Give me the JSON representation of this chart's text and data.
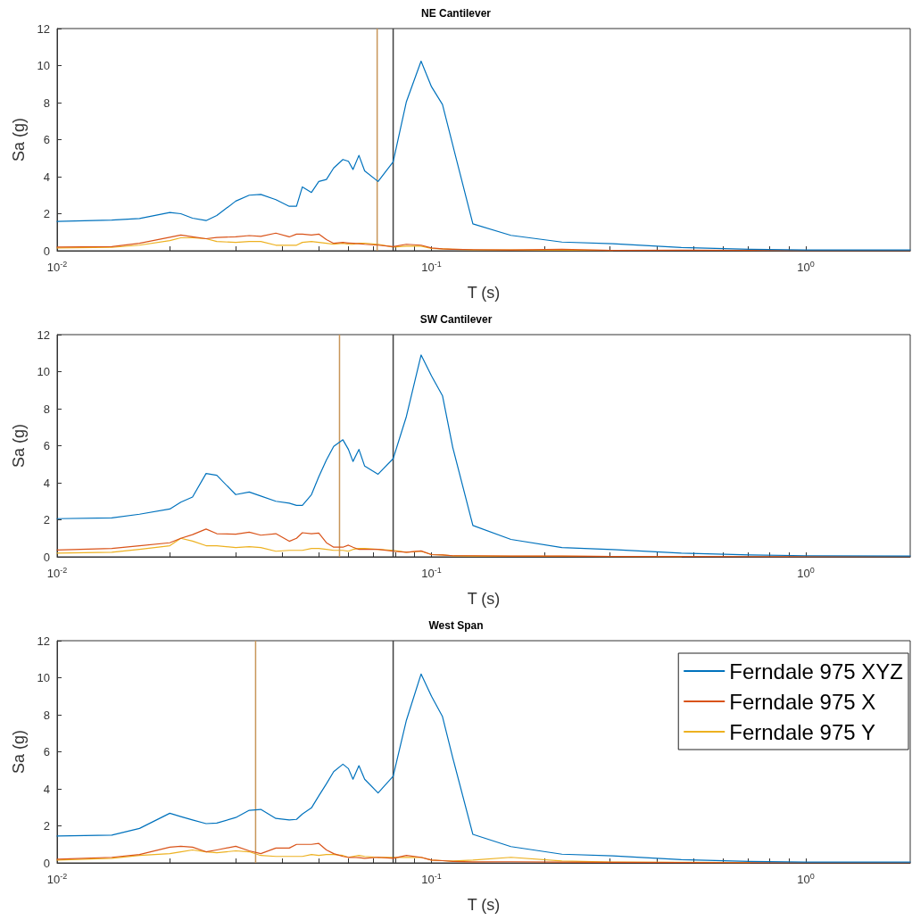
{
  "chart_data": [
    {
      "type": "line",
      "title": "NE Cantilever",
      "xlabel": "T (s)",
      "ylabel": "Sa (g)",
      "log": "x",
      "grid": false,
      "marker": "none",
      "xlim": [
        0.01,
        1.9
      ],
      "ylim": [
        0,
        12
      ],
      "yticks": [
        0,
        2,
        4,
        6,
        8,
        10,
        12
      ],
      "xticks": [
        {
          "value": 0.01,
          "label": "10$^{-2}$"
        },
        {
          "value": 0.02,
          "label": null
        },
        {
          "value": 0.03,
          "label": null
        },
        {
          "value": 0.04,
          "label": null
        },
        {
          "value": 0.05,
          "label": null
        },
        {
          "value": 0.06,
          "label": null
        },
        {
          "value": 0.07,
          "label": null
        },
        {
          "value": 0.08,
          "label": null
        },
        {
          "value": 0.09,
          "label": null
        },
        {
          "value": 0.1,
          "label": "10$^{-1}$"
        },
        {
          "value": 0.2,
          "label": null
        },
        {
          "value": 0.3,
          "label": null
        },
        {
          "value": 0.4,
          "label": null
        },
        {
          "value": 0.5,
          "label": null
        },
        {
          "value": 0.6,
          "label": null
        },
        {
          "value": 0.7,
          "label": null
        },
        {
          "value": 0.8,
          "label": null
        },
        {
          "value": 0.9,
          "label": null
        },
        {
          "value": 1,
          "label": "10$^{0}$"
        }
      ],
      "x": [
        0.01,
        0.014,
        0.0166,
        0.02,
        0.0214,
        0.023,
        0.025,
        0.0267,
        0.03,
        0.0326,
        0.035,
        0.0384,
        0.0417,
        0.0436,
        0.0452,
        0.0478,
        0.05,
        0.0524,
        0.0548,
        0.058,
        0.06,
        0.0617,
        0.064,
        0.0663,
        0.072,
        0.079,
        0.0857,
        0.0938,
        0.1,
        0.107,
        0.114,
        0.129,
        0.163,
        0.223,
        0.305,
        0.465,
        0.708,
        1,
        1.9
      ],
      "series": [
        {
          "color": "#0072bd",
          "values": [
            1.58,
            1.66,
            1.74,
            2.07,
            2.0,
            1.76,
            1.63,
            1.9,
            2.68,
            3.0,
            3.04,
            2.76,
            2.4,
            2.4,
            3.45,
            3.15,
            3.74,
            3.85,
            4.47,
            4.93,
            4.83,
            4.39,
            5.15,
            4.31,
            3.74,
            4.8,
            8.05,
            10.24,
            8.86,
            7.9,
            5.7,
            1.45,
            0.83,
            0.47,
            0.38,
            0.17,
            0.08,
            0.04,
            0.04
          ]
        },
        {
          "color": "#d95319",
          "values": [
            0.2,
            0.22,
            0.4,
            0.73,
            0.85,
            0.75,
            0.65,
            0.72,
            0.75,
            0.82,
            0.78,
            0.95,
            0.75,
            0.9,
            0.9,
            0.85,
            0.9,
            0.6,
            0.4,
            0.45,
            0.42,
            0.4,
            0.38,
            0.35,
            0.3,
            0.22,
            0.35,
            0.3,
            0.15,
            0.1,
            0.08,
            0.06,
            0.04,
            0.08,
            0.02,
            0.03,
            0.02,
            0.01,
            0.01
          ]
        },
        {
          "color": "#edb120",
          "values": [
            0.15,
            0.18,
            0.3,
            0.55,
            0.7,
            0.7,
            0.65,
            0.5,
            0.45,
            0.5,
            0.5,
            0.3,
            0.3,
            0.3,
            0.45,
            0.5,
            0.45,
            0.4,
            0.35,
            0.4,
            0.35,
            0.35,
            0.4,
            0.4,
            0.35,
            0.2,
            0.25,
            0.25,
            0.12,
            0.1,
            0.08,
            0.05,
            0.04,
            0.03,
            0.02,
            null,
            null,
            null,
            null
          ]
        }
      ],
      "ref_lines": [
        {
          "axis": "x",
          "value": 0.0716,
          "color": "#c8965a"
        },
        {
          "axis": "x",
          "value": 0.079,
          "color": "#404040"
        }
      ]
    },
    {
      "type": "line",
      "title": "SW Cantilever",
      "xlabel": "T (s)",
      "ylabel": "Sa (g)",
      "log": "x",
      "grid": false,
      "marker": "none",
      "xlim": [
        0.01,
        1.9
      ],
      "ylim": [
        0,
        12
      ],
      "yticks": [
        0,
        2,
        4,
        6,
        8,
        10,
        12
      ],
      "xticks": [
        {
          "value": 0.01,
          "label": "10$^{-2}$"
        },
        {
          "value": 0.02,
          "label": null
        },
        {
          "value": 0.03,
          "label": null
        },
        {
          "value": 0.04,
          "label": null
        },
        {
          "value": 0.05,
          "label": null
        },
        {
          "value": 0.06,
          "label": null
        },
        {
          "value": 0.07,
          "label": null
        },
        {
          "value": 0.08,
          "label": null
        },
        {
          "value": 0.09,
          "label": null
        },
        {
          "value": 0.1,
          "label": "10$^{-1}$"
        },
        {
          "value": 0.2,
          "label": null
        },
        {
          "value": 0.3,
          "label": null
        },
        {
          "value": 0.4,
          "label": null
        },
        {
          "value": 0.5,
          "label": null
        },
        {
          "value": 0.6,
          "label": null
        },
        {
          "value": 0.7,
          "label": null
        },
        {
          "value": 0.8,
          "label": null
        },
        {
          "value": 0.9,
          "label": null
        },
        {
          "value": 1,
          "label": "10$^{0}$"
        }
      ],
      "x": [
        0.01,
        0.014,
        0.0166,
        0.02,
        0.0214,
        0.023,
        0.025,
        0.0267,
        0.03,
        0.0326,
        0.035,
        0.0384,
        0.0417,
        0.0436,
        0.0452,
        0.0478,
        0.05,
        0.0524,
        0.0548,
        0.058,
        0.06,
        0.0617,
        0.064,
        0.0663,
        0.072,
        0.079,
        0.0857,
        0.0938,
        0.1,
        0.107,
        0.114,
        0.129,
        0.163,
        0.223,
        0.305,
        0.465,
        0.708,
        1,
        1.9
      ],
      "series": [
        {
          "color": "#0072bd",
          "values": [
            2.06,
            2.1,
            2.3,
            2.58,
            2.95,
            3.23,
            4.5,
            4.4,
            3.36,
            3.5,
            3.28,
            3.0,
            2.9,
            2.78,
            2.78,
            3.36,
            4.33,
            5.23,
            5.96,
            6.32,
            5.8,
            5.15,
            5.8,
            4.9,
            4.46,
            5.3,
            7.58,
            10.9,
            9.77,
            8.7,
            5.9,
            1.69,
            0.94,
            0.5,
            0.39,
            0.2,
            0.1,
            0.06,
            0.04
          ]
        },
        {
          "color": "#d95319",
          "values": [
            0.37,
            0.45,
            0.6,
            0.76,
            1.0,
            1.2,
            1.5,
            1.25,
            1.22,
            1.33,
            1.17,
            1.25,
            0.84,
            1.0,
            1.3,
            1.25,
            1.28,
            0.76,
            0.52,
            0.52,
            0.63,
            0.52,
            0.4,
            0.4,
            0.4,
            0.3,
            0.25,
            0.32,
            0.12,
            0.1,
            0.06,
            0.06,
            0.04,
            0.04,
            0.02,
            0.02,
            0.01,
            0.01,
            0.01
          ]
        },
        {
          "color": "#edb120",
          "values": [
            0.2,
            0.25,
            0.4,
            0.6,
            1.0,
            0.85,
            0.6,
            0.6,
            0.5,
            0.55,
            0.5,
            0.3,
            0.35,
            0.35,
            0.35,
            0.45,
            0.45,
            0.4,
            0.35,
            0.35,
            0.3,
            0.4,
            0.45,
            0.45,
            0.4,
            0.35,
            0.25,
            0.3,
            0.12,
            0.1,
            0.05,
            0.04,
            0.03,
            0.03,
            0.02,
            0.01,
            null,
            null,
            null
          ]
        }
      ],
      "ref_lines": [
        {
          "axis": "x",
          "value": 0.0568,
          "color": "#c8965a"
        },
        {
          "axis": "x",
          "value": 0.079,
          "color": "#404040"
        }
      ]
    },
    {
      "type": "line",
      "title": "West Span",
      "xlabel": "T (s)",
      "ylabel": "Sa (g)",
      "log": "x",
      "grid": false,
      "marker": "none",
      "legend": "top right",
      "xlim": [
        0.01,
        1.9
      ],
      "ylim": [
        0,
        12
      ],
      "yticks": [
        0,
        2,
        4,
        6,
        8,
        10,
        12
      ],
      "xticks": [
        {
          "value": 0.01,
          "label": "10$^{-2}$"
        },
        {
          "value": 0.02,
          "label": null
        },
        {
          "value": 0.03,
          "label": null
        },
        {
          "value": 0.04,
          "label": null
        },
        {
          "value": 0.05,
          "label": null
        },
        {
          "value": 0.06,
          "label": null
        },
        {
          "value": 0.07,
          "label": null
        },
        {
          "value": 0.08,
          "label": null
        },
        {
          "value": 0.09,
          "label": null
        },
        {
          "value": 0.1,
          "label": "10$^{-1}$"
        },
        {
          "value": 0.2,
          "label": null
        },
        {
          "value": 0.3,
          "label": null
        },
        {
          "value": 0.4,
          "label": null
        },
        {
          "value": 0.5,
          "label": null
        },
        {
          "value": 0.6,
          "label": null
        },
        {
          "value": 0.7,
          "label": null
        },
        {
          "value": 0.8,
          "label": null
        },
        {
          "value": 0.9,
          "label": null
        },
        {
          "value": 1,
          "label": "10$^{0}$"
        }
      ],
      "x": [
        0.01,
        0.014,
        0.0166,
        0.02,
        0.0214,
        0.023,
        0.025,
        0.0267,
        0.03,
        0.0326,
        0.035,
        0.0384,
        0.0417,
        0.0436,
        0.0452,
        0.0478,
        0.05,
        0.0524,
        0.0548,
        0.058,
        0.06,
        0.0617,
        0.064,
        0.0663,
        0.072,
        0.079,
        0.0857,
        0.0938,
        0.1,
        0.107,
        0.114,
        0.129,
        0.163,
        0.223,
        0.305,
        0.465,
        0.708,
        1,
        1.9
      ],
      "series": [
        {
          "name": "Ferndale 975 XYZ",
          "color": "#0072bd",
          "values": [
            1.45,
            1.5,
            1.86,
            2.68,
            2.5,
            2.32,
            2.12,
            2.15,
            2.45,
            2.84,
            2.89,
            2.4,
            2.32,
            2.35,
            2.64,
            2.97,
            3.62,
            4.27,
            4.93,
            5.33,
            5.09,
            4.52,
            5.25,
            4.52,
            3.78,
            4.68,
            7.7,
            10.2,
            9.0,
            7.9,
            5.67,
            1.54,
            0.88,
            0.47,
            0.38,
            0.17,
            0.08,
            0.04,
            0.04
          ]
        },
        {
          "name": "Ferndale 975 X",
          "color": "#d95319",
          "values": [
            0.2,
            0.3,
            0.45,
            0.85,
            0.9,
            0.85,
            0.6,
            0.7,
            0.9,
            0.65,
            0.5,
            0.8,
            0.8,
            1.0,
            1.0,
            1.0,
            1.05,
            0.7,
            0.5,
            0.35,
            0.3,
            0.3,
            0.28,
            0.25,
            0.3,
            0.25,
            0.4,
            0.3,
            0.15,
            0.12,
            0.08,
            0.05,
            0.06,
            0.04,
            0.03,
            0.02,
            0.01,
            0.01,
            0.01
          ]
        },
        {
          "name": "Ferndale 975 Y",
          "color": "#edb120",
          "values": [
            0.15,
            0.25,
            0.4,
            0.5,
            0.6,
            0.7,
            0.6,
            0.55,
            0.65,
            0.6,
            0.4,
            0.35,
            0.35,
            0.35,
            0.35,
            0.45,
            0.4,
            0.45,
            0.45,
            0.4,
            0.3,
            0.35,
            0.4,
            0.35,
            0.3,
            0.3,
            0.3,
            0.3,
            0.15,
            0.12,
            0.1,
            0.15,
            0.3,
            0.1,
            0.04,
            0.03,
            0.02,
            null,
            null
          ]
        }
      ],
      "ref_lines": [
        {
          "axis": "x",
          "value": 0.0339,
          "color": "#c8965a"
        },
        {
          "axis": "x",
          "value": 0.079,
          "color": "#404040"
        }
      ]
    }
  ]
}
